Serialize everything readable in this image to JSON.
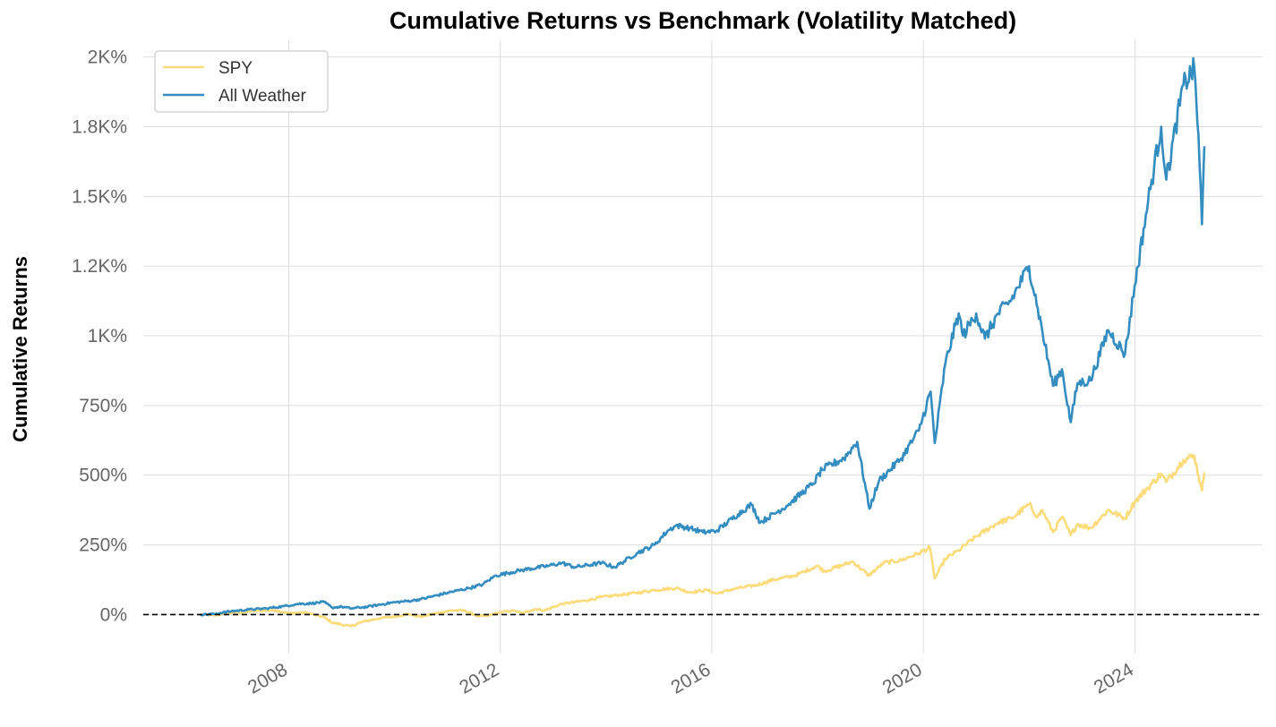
{
  "chart_data": {
    "type": "line",
    "title": "Cumulative Returns vs Benchmark (Volatility Matched)",
    "xlabel": "",
    "ylabel": "Cumulative Returns",
    "xlim": [
      "2005-04-01",
      "2026-06-01"
    ],
    "ylim": [
      -140,
      2060
    ],
    "y_ticks": [
      {
        "value": 0,
        "label": "0%"
      },
      {
        "value": 250,
        "label": "250%"
      },
      {
        "value": 500,
        "label": "500%"
      },
      {
        "value": 750,
        "label": "750%"
      },
      {
        "value": 1000,
        "label": "1K%"
      },
      {
        "value": 1250,
        "label": "1.2K%"
      },
      {
        "value": 1500,
        "label": "1.5K%"
      },
      {
        "value": 1750,
        "label": "1.8K%"
      },
      {
        "value": 2000,
        "label": "2K%"
      }
    ],
    "x_ticks": [
      {
        "value": "2008-01-01",
        "label": "2008"
      },
      {
        "value": "2012-01-01",
        "label": "2012"
      },
      {
        "value": "2016-01-01",
        "label": "2016"
      },
      {
        "value": "2020-01-01",
        "label": "2020"
      },
      {
        "value": "2024-01-01",
        "label": "2024"
      }
    ],
    "grid": true,
    "legend_position": "top-left",
    "baseline": {
      "value": 0,
      "style": "dashed",
      "color": "#000000"
    },
    "series": [
      {
        "name": "SPY",
        "color": "#fcdb7b",
        "points": [
          [
            "2006-05-01",
            0
          ],
          [
            "2006-08-01",
            -3
          ],
          [
            "2006-12-01",
            6
          ],
          [
            "2007-03-01",
            8
          ],
          [
            "2007-06-01",
            14
          ],
          [
            "2007-10-01",
            15
          ],
          [
            "2008-01-01",
            5
          ],
          [
            "2008-05-01",
            7
          ],
          [
            "2008-09-01",
            -10
          ],
          [
            "2008-11-01",
            -30
          ],
          [
            "2009-03-01",
            -42
          ],
          [
            "2009-06-01",
            -25
          ],
          [
            "2009-10-01",
            -12
          ],
          [
            "2010-01-01",
            -8
          ],
          [
            "2010-04-01",
            2
          ],
          [
            "2010-07-01",
            -8
          ],
          [
            "2010-10-01",
            3
          ],
          [
            "2011-02-01",
            15
          ],
          [
            "2011-05-01",
            14
          ],
          [
            "2011-08-01",
            -6
          ],
          [
            "2011-10-01",
            -5
          ],
          [
            "2012-01-01",
            8
          ],
          [
            "2012-04-01",
            14
          ],
          [
            "2012-06-01",
            5
          ],
          [
            "2012-09-01",
            20
          ],
          [
            "2012-11-01",
            15
          ],
          [
            "2013-03-01",
            38
          ],
          [
            "2013-06-01",
            45
          ],
          [
            "2013-09-01",
            52
          ],
          [
            "2013-12-01",
            63
          ],
          [
            "2014-04-01",
            70
          ],
          [
            "2014-08-01",
            78
          ],
          [
            "2014-12-01",
            88
          ],
          [
            "2015-05-01",
            95
          ],
          [
            "2015-08-01",
            80
          ],
          [
            "2015-12-01",
            88
          ],
          [
            "2016-02-01",
            75
          ],
          [
            "2016-06-01",
            92
          ],
          [
            "2016-11-01",
            105
          ],
          [
            "2017-03-01",
            125
          ],
          [
            "2017-08-01",
            140
          ],
          [
            "2018-01-01",
            175
          ],
          [
            "2018-02-15",
            155
          ],
          [
            "2018-09-01",
            190
          ],
          [
            "2018-12-20",
            140
          ],
          [
            "2019-04-01",
            185
          ],
          [
            "2019-08-01",
            195
          ],
          [
            "2019-12-01",
            220
          ],
          [
            "2020-02-15",
            240
          ],
          [
            "2020-03-20",
            130
          ],
          [
            "2020-06-01",
            200
          ],
          [
            "2020-09-01",
            230
          ],
          [
            "2020-12-31",
            280
          ],
          [
            "2021-06-01",
            330
          ],
          [
            "2021-09-01",
            345
          ],
          [
            "2021-12-31",
            395
          ],
          [
            "2022-03-01",
            350
          ],
          [
            "2022-04-01",
            375
          ],
          [
            "2022-06-15",
            295
          ],
          [
            "2022-08-15",
            350
          ],
          [
            "2022-10-15",
            285
          ],
          [
            "2022-12-01",
            325
          ],
          [
            "2023-03-01",
            310
          ],
          [
            "2023-07-01",
            375
          ],
          [
            "2023-10-25",
            345
          ],
          [
            "2023-12-31",
            405
          ],
          [
            "2024-04-01",
            455
          ],
          [
            "2024-07-01",
            505
          ],
          [
            "2024-08-05",
            475
          ],
          [
            "2024-12-01",
            555
          ],
          [
            "2025-02-15",
            570
          ],
          [
            "2025-04-08",
            445
          ],
          [
            "2025-04-25",
            510
          ]
        ]
      },
      {
        "name": "All Weather",
        "color": "#348dc1",
        "points": [
          [
            "2006-05-01",
            0
          ],
          [
            "2006-08-01",
            2
          ],
          [
            "2006-12-01",
            12
          ],
          [
            "2007-04-01",
            18
          ],
          [
            "2007-08-01",
            22
          ],
          [
            "2007-12-01",
            30
          ],
          [
            "2008-03-01",
            38
          ],
          [
            "2008-06-01",
            40
          ],
          [
            "2008-09-01",
            45
          ],
          [
            "2008-10-25",
            25
          ],
          [
            "2009-01-01",
            28
          ],
          [
            "2009-03-01",
            22
          ],
          [
            "2009-07-01",
            28
          ],
          [
            "2009-12-01",
            42
          ],
          [
            "2010-05-01",
            50
          ],
          [
            "2010-07-01",
            55
          ],
          [
            "2011-01-01",
            78
          ],
          [
            "2011-06-01",
            95
          ],
          [
            "2011-09-01",
            108
          ],
          [
            "2011-12-01",
            140
          ],
          [
            "2012-06-01",
            160
          ],
          [
            "2012-12-01",
            175
          ],
          [
            "2013-03-01",
            185
          ],
          [
            "2013-06-01",
            170
          ],
          [
            "2013-12-01",
            185
          ],
          [
            "2014-03-01",
            170
          ],
          [
            "2014-08-01",
            220
          ],
          [
            "2014-12-01",
            250
          ],
          [
            "2015-03-01",
            300
          ],
          [
            "2015-05-01",
            320
          ],
          [
            "2015-08-01",
            310
          ],
          [
            "2015-11-01",
            295
          ],
          [
            "2016-02-01",
            300
          ],
          [
            "2016-07-01",
            360
          ],
          [
            "2016-10-01",
            395
          ],
          [
            "2016-12-01",
            330
          ],
          [
            "2017-06-01",
            390
          ],
          [
            "2017-12-01",
            470
          ],
          [
            "2018-02-01",
            520
          ],
          [
            "2018-07-01",
            560
          ],
          [
            "2018-10-01",
            620
          ],
          [
            "2018-12-24",
            380
          ],
          [
            "2019-03-01",
            480
          ],
          [
            "2019-08-01",
            560
          ],
          [
            "2019-12-01",
            660
          ],
          [
            "2020-02-20",
            800
          ],
          [
            "2020-03-20",
            615
          ],
          [
            "2020-06-01",
            900
          ],
          [
            "2020-09-01",
            1080
          ],
          [
            "2020-10-01",
            1000
          ],
          [
            "2020-12-31",
            1080
          ],
          [
            "2021-03-01",
            990
          ],
          [
            "2021-06-01",
            1080
          ],
          [
            "2021-09-01",
            1130
          ],
          [
            "2021-12-31",
            1250
          ],
          [
            "2022-03-01",
            1100
          ],
          [
            "2022-06-15",
            820
          ],
          [
            "2022-08-15",
            880
          ],
          [
            "2022-10-15",
            690
          ],
          [
            "2022-12-01",
            830
          ],
          [
            "2023-03-01",
            840
          ],
          [
            "2023-07-01",
            1020
          ],
          [
            "2023-10-25",
            935
          ],
          [
            "2023-12-31",
            1180
          ],
          [
            "2024-04-01",
            1480
          ],
          [
            "2024-07-01",
            1750
          ],
          [
            "2024-08-05",
            1560
          ],
          [
            "2024-12-01",
            1900
          ],
          [
            "2025-02-15",
            1960
          ],
          [
            "2025-03-15",
            1720
          ],
          [
            "2025-04-08",
            1400
          ],
          [
            "2025-04-25",
            1680
          ]
        ]
      }
    ]
  }
}
